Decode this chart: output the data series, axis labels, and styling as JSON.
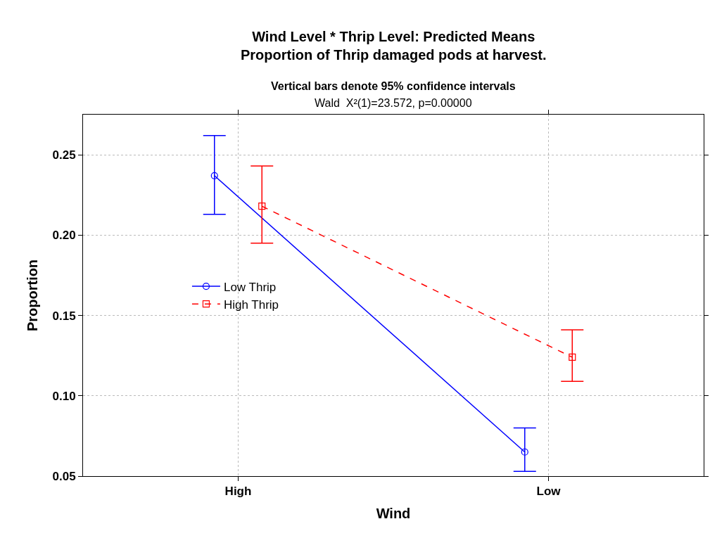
{
  "chart_data": {
    "type": "line",
    "title": "Wind Level * Thrip Level: Predicted Means\nProportion of Thrip damaged pods at harvest.",
    "subtitle": "Vertical bars denote 95% confidence intervals",
    "annotations": [
      "Wald  X²(1)=23.572, p=0.00000"
    ],
    "xlabel": "Wind",
    "ylabel": "Proportion",
    "categories": [
      "High",
      "Low"
    ],
    "series": [
      {
        "name": "Low Thrip",
        "color": "#0000ff",
        "values": [
          0.237,
          0.065
        ],
        "errors": [
          [
            0.213,
            0.262
          ],
          [
            0.053,
            0.08
          ]
        ],
        "marker": "circle",
        "line_style": "solid"
      },
      {
        "name": "High Thrip",
        "color": "#ff0000",
        "values": [
          0.218,
          0.124
        ],
        "errors": [
          [
            0.195,
            0.243
          ],
          [
            0.109,
            0.141
          ]
        ],
        "marker": "square",
        "line_style": "dashed"
      }
    ],
    "ylim": [
      0.05,
      0.275
    ],
    "yticks": [
      0.05,
      {
        "value": 0.1,
        "label": "0.10"
      },
      0.15,
      {
        "value": 0.2,
        "label": "0.20"
      },
      0.25
    ],
    "grid": true,
    "legend": "left"
  }
}
